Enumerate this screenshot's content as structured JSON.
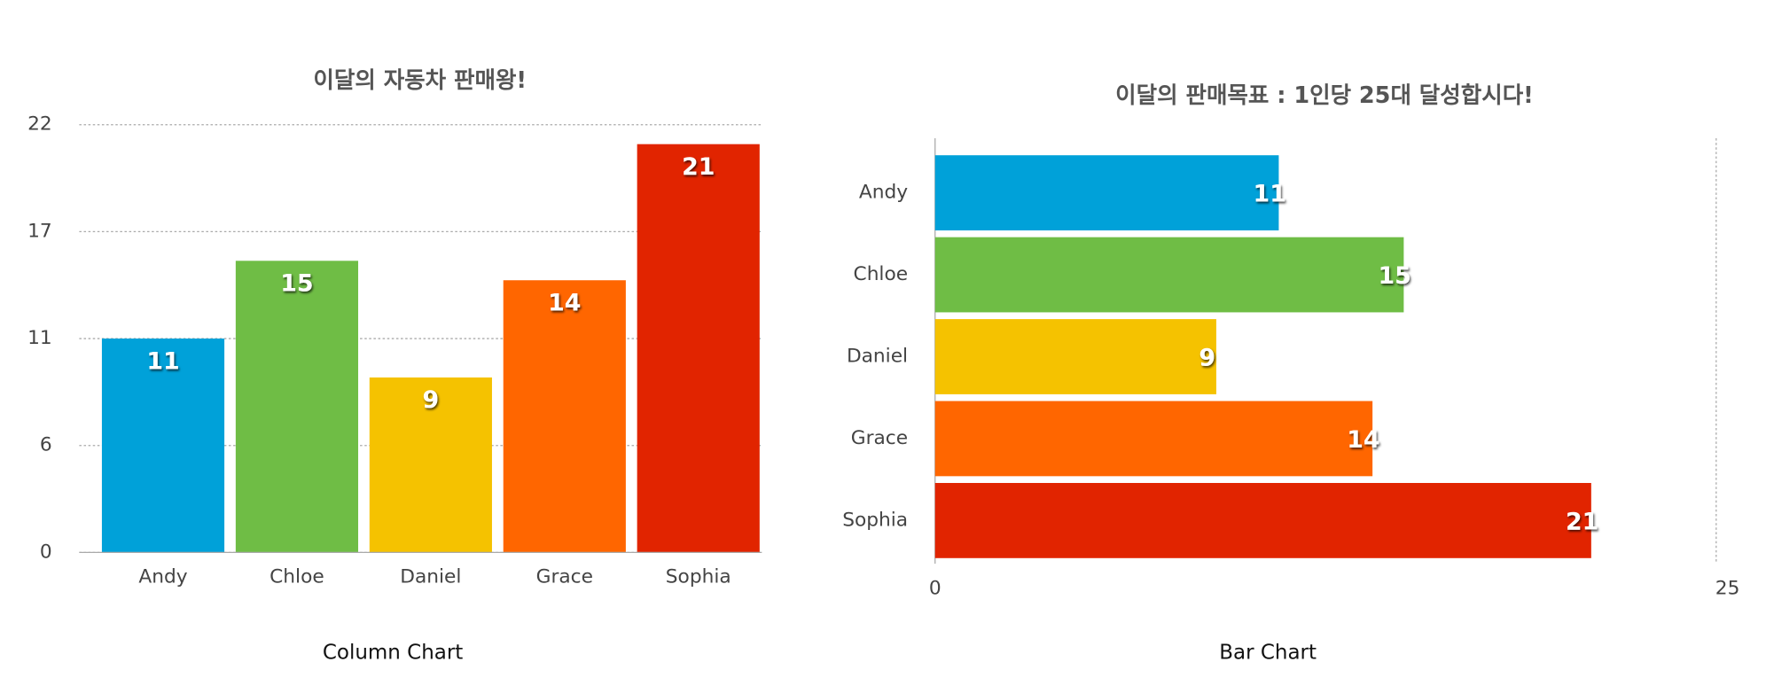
{
  "chart_data": [
    {
      "type": "bar",
      "title": "이달의 자동차 판매왕!",
      "caption": "Column Chart",
      "categories": [
        "Andy",
        "Chloe",
        "Daniel",
        "Grace",
        "Sophia"
      ],
      "values": [
        11,
        15,
        9,
        14,
        21
      ],
      "colors": [
        "#00a1d9",
        "#6fbd45",
        "#f5c200",
        "#ff6600",
        "#e12400"
      ],
      "ylim": [
        0,
        22
      ],
      "yticks": [
        0,
        {
          "value": 5.5,
          "label": "6"
        },
        11,
        {
          "value": 16.5,
          "label": "17"
        },
        22
      ],
      "grid": true
    },
    {
      "type": "horizontal-bar",
      "title": "이달의 판매목표 : 1인당 25대 달성합시다!",
      "caption": "Bar Chart",
      "categories": [
        "Andy",
        "Chloe",
        "Daniel",
        "Grace",
        "Sophia"
      ],
      "values": [
        11,
        15,
        9,
        14,
        21
      ],
      "colors": [
        "#00a1d9",
        "#6fbd45",
        "#f5c200",
        "#ff6600",
        "#e12400"
      ],
      "xlim": [
        0,
        25
      ],
      "xticks": [
        0,
        25
      ],
      "grid": true
    }
  ]
}
